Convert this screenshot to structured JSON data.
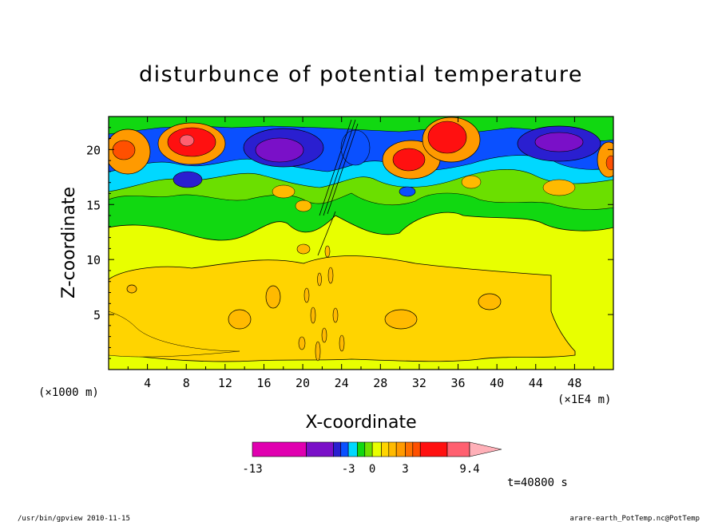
{
  "chart_data": {
    "type": "heatmap",
    "title": "disturbunce of potential temperature",
    "xlabel": "X-coordinate",
    "ylabel": "Z-coordinate",
    "x_unit_left": "(×1000 m)",
    "x_unit_right": "(×1E4 m)",
    "xlim": [
      0,
      52
    ],
    "ylim": [
      0,
      23
    ],
    "x_ticks": [
      4,
      8,
      12,
      16,
      20,
      24,
      28,
      32,
      36,
      40,
      44,
      48
    ],
    "y_ticks": [
      5,
      10,
      15,
      20
    ],
    "colorbar": {
      "levels": [
        -13,
        -9,
        -6,
        -4,
        -3,
        -2,
        -1,
        0,
        0.5,
        1,
        2,
        3,
        4,
        5,
        6.5,
        7.9,
        9.4
      ],
      "colors": [
        "#e000b0",
        "#7a10c8",
        "#2a1fd0",
        "#0a50ff",
        "#00d8ff",
        "#11d811",
        "#70e000",
        "#e8ff00",
        "#ffd400",
        "#ffba00",
        "#ff9a00",
        "#ff7000",
        "#ff5000",
        "#ff1010",
        "#ff6070",
        "#ffb0b8"
      ],
      "labels": [
        "-13",
        "-3",
        "0",
        "3",
        "9.4"
      ],
      "label_values": [
        -13,
        -3,
        0,
        3,
        9.4
      ],
      "extend": "max"
    },
    "time_label": "t=40800 s",
    "footer_left": "/usr/bin/gpview  2010-11-15",
    "footer_right": "arare-earth_PotTemp.nc@PotTemp",
    "field_description": {
      "background_low": "#ffd400",
      "background_mid": "#e8ff00",
      "upper_layer": "mix of #11d811, #00d8ff, #0a50ff, #2a1fd0, #7a10c8, #ff1010"
    }
  }
}
